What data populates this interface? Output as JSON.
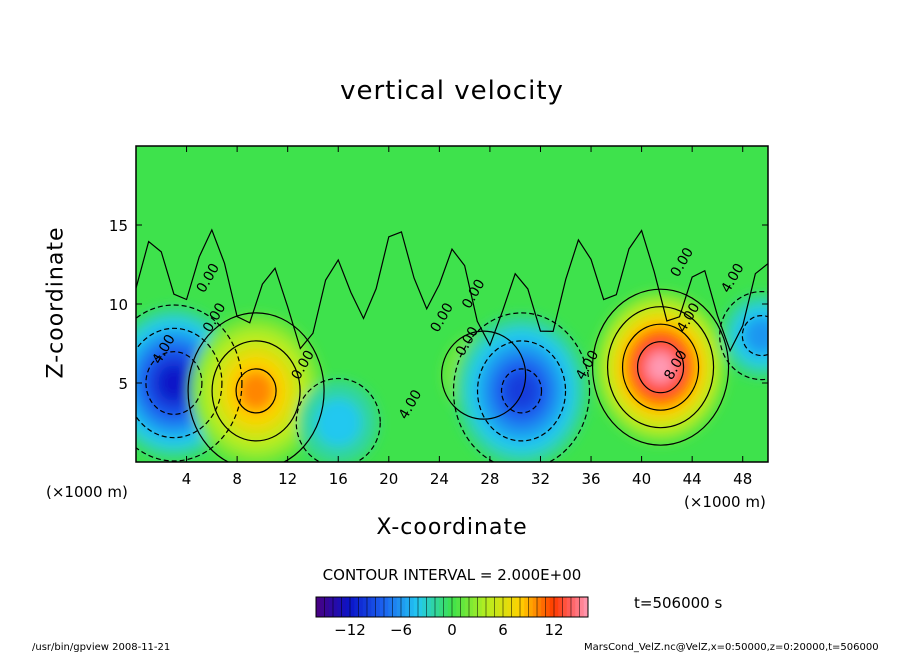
{
  "chart_data": {
    "type": "heatmap",
    "title": "vertical velocity",
    "xlabel": "X-coordinate",
    "ylabel": "Z-coordinate",
    "x_unit": "(×1000 m)",
    "y_unit": "(×1000 m)",
    "x_ticks": [
      "4",
      "8",
      "12",
      "16",
      "20",
      "24",
      "28",
      "32",
      "36",
      "40",
      "44",
      "48"
    ],
    "y_ticks": [
      "5",
      "10",
      "15"
    ],
    "xlim": [
      0,
      50
    ],
    "ylim": [
      0,
      20
    ],
    "contour_interval": "CONTOUR INTERVAL = 2.000E+00",
    "colorbar_ticks": [
      "−12",
      "−6",
      "0",
      "6",
      "12"
    ],
    "colorbar_range": [
      -16,
      16
    ],
    "contour_labels": [
      "4.00",
      "0.00",
      "0.00",
      "4.00",
      "0.00",
      "0.00",
      "4.00",
      "0.00",
      "8.00",
      "4.00",
      "0.00",
      "4.00",
      "0.00"
    ],
    "features": [
      {
        "x": 3,
        "z": 5,
        "value": -12
      },
      {
        "x": 9.5,
        "z": 4.5,
        "value": 10
      },
      {
        "x": 27.5,
        "z": 5.5,
        "value": 4
      },
      {
        "x": 30.5,
        "z": 4.5,
        "value": -10
      },
      {
        "x": 41.5,
        "z": 6,
        "value": 16
      },
      {
        "x": 49.5,
        "z": 8,
        "value": -6
      },
      {
        "x": 16,
        "z": 2.5,
        "value": -4
      }
    ]
  },
  "time_label": "t=506000 s",
  "footer": {
    "left": "/usr/bin/gpview  2008-11-21",
    "right": "MarsCond_VelZ.nc@VelZ,x=0:50000,z=0:20000,t=506000"
  },
  "colors": {
    "neg_max": "#4a0080",
    "neg": "#1c3ce0",
    "zero": "#2ee84a",
    "pos": "#ff8c00",
    "pos_max": "#ff4040"
  }
}
